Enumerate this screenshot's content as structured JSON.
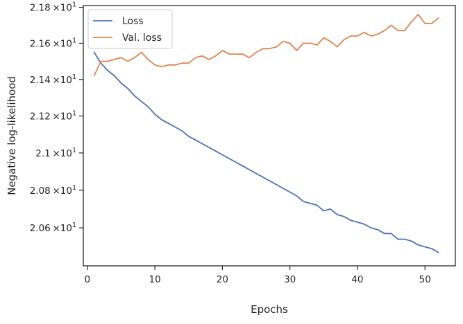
{
  "chart_data": {
    "type": "line",
    "xlabel": "Epochs",
    "ylabel": "Negative log-likelihood",
    "xlim": [
      -0.6,
      54.5
    ],
    "ylim": [
      20.4,
      21.81
    ],
    "y_scale": "log",
    "x_ticks": [
      0,
      10,
      20,
      30,
      40,
      50
    ],
    "y_ticks": [
      {
        "value": 20.6,
        "mantissa": "2.06",
        "power": "1"
      },
      {
        "value": 20.8,
        "mantissa": "2.08",
        "power": "1"
      },
      {
        "value": 21.0,
        "mantissa": "2.1",
        "power": "1"
      },
      {
        "value": 21.2,
        "mantissa": "2.12",
        "power": "1"
      },
      {
        "value": 21.4,
        "mantissa": "2.14",
        "power": "1"
      },
      {
        "value": 21.6,
        "mantissa": "2.16",
        "power": "1"
      },
      {
        "value": 21.8,
        "mantissa": "2.18",
        "power": "1"
      }
    ],
    "tick_times": "×10",
    "grid": false,
    "legend_position": "top-left",
    "series": [
      {
        "name": "Loss",
        "color": "#4c72b0",
        "x": [
          1,
          2,
          3,
          4,
          5,
          6,
          7,
          8,
          9,
          10,
          11,
          12,
          13,
          14,
          15,
          16,
          17,
          18,
          19,
          20,
          21,
          22,
          23,
          24,
          25,
          26,
          27,
          28,
          29,
          30,
          31,
          32,
          33,
          34,
          35,
          36,
          37,
          38,
          39,
          40,
          41,
          42,
          43,
          44,
          45,
          46,
          47,
          48,
          49,
          50,
          51,
          52
        ],
        "values": [
          21.55,
          21.49,
          21.45,
          21.42,
          21.38,
          21.35,
          21.31,
          21.28,
          21.25,
          21.21,
          21.18,
          21.16,
          21.14,
          21.12,
          21.09,
          21.07,
          21.05,
          21.03,
          21.01,
          20.99,
          20.97,
          20.95,
          20.93,
          20.91,
          20.89,
          20.87,
          20.85,
          20.83,
          20.81,
          20.79,
          20.77,
          20.74,
          20.73,
          20.72,
          20.69,
          20.7,
          20.67,
          20.66,
          20.64,
          20.63,
          20.62,
          20.6,
          20.59,
          20.57,
          20.57,
          20.54,
          20.54,
          20.53,
          20.51,
          20.5,
          20.49,
          20.47
        ]
      },
      {
        "name": "Val. loss",
        "color": "#dd8452",
        "x": [
          1,
          2,
          3,
          4,
          5,
          6,
          7,
          8,
          9,
          10,
          11,
          12,
          13,
          14,
          15,
          16,
          17,
          18,
          19,
          20,
          21,
          22,
          23,
          24,
          25,
          26,
          27,
          28,
          29,
          30,
          31,
          32,
          33,
          34,
          35,
          36,
          37,
          38,
          39,
          40,
          41,
          42,
          43,
          44,
          45,
          46,
          47,
          48,
          49,
          50,
          51,
          52
        ],
        "values": [
          21.42,
          21.5,
          21.5,
          21.51,
          21.52,
          21.5,
          21.52,
          21.55,
          21.51,
          21.48,
          21.47,
          21.48,
          21.48,
          21.49,
          21.49,
          21.52,
          21.53,
          21.51,
          21.53,
          21.56,
          21.54,
          21.54,
          21.54,
          21.52,
          21.55,
          21.57,
          21.57,
          21.58,
          21.61,
          21.6,
          21.56,
          21.6,
          21.6,
          21.59,
          21.63,
          21.61,
          21.58,
          21.62,
          21.64,
          21.64,
          21.66,
          21.64,
          21.65,
          21.67,
          21.7,
          21.67,
          21.67,
          21.72,
          21.76,
          21.71,
          21.71,
          21.74
        ]
      }
    ]
  }
}
